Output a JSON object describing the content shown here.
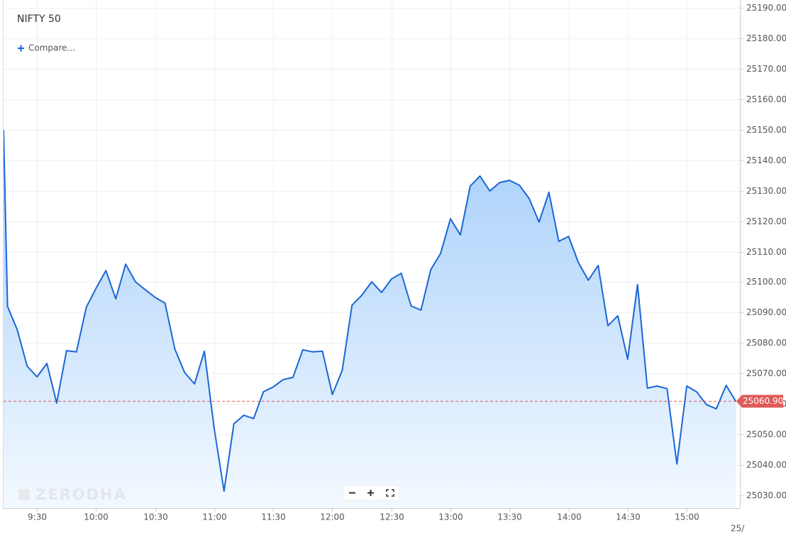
{
  "chart_data": {
    "type": "area",
    "title": "NIFTY 50",
    "compare_label": "Compare...",
    "watermark": "ZERODHA",
    "date_label": "25/",
    "color": "#1a66d6",
    "grid": true,
    "x": [
      "9:13",
      "9:15",
      "9:20",
      "9:25",
      "9:30",
      "9:35",
      "9:40",
      "9:45",
      "9:50",
      "9:55",
      "10:00",
      "10:05",
      "10:10",
      "10:15",
      "10:20",
      "10:25",
      "10:30",
      "10:35",
      "10:40",
      "10:45",
      "10:50",
      "10:55",
      "11:00",
      "11:05",
      "11:10",
      "11:15",
      "11:20",
      "11:25",
      "11:30",
      "11:35",
      "11:40",
      "11:45",
      "11:50",
      "11:55",
      "12:00",
      "12:05",
      "12:10",
      "12:15",
      "12:20",
      "12:25",
      "12:30",
      "12:35",
      "12:40",
      "12:45",
      "12:50",
      "12:55",
      "13:00",
      "13:05",
      "13:10",
      "13:15",
      "13:20",
      "13:25",
      "13:30",
      "13:35",
      "13:40",
      "13:45",
      "13:50",
      "13:55",
      "14:00",
      "14:05",
      "14:10",
      "14:15",
      "14:20",
      "14:25",
      "14:30",
      "14:35",
      "14:40",
      "14:45",
      "14:50",
      "14:55",
      "15:00",
      "15:05",
      "15:10",
      "15:15",
      "15:20",
      "15:25"
    ],
    "values": [
      25150,
      25092,
      25084.3,
      25072.4,
      25068.9,
      25073.3,
      25060.3,
      25077.5,
      25077.1,
      25091.7,
      25098,
      25103.8,
      25094.5,
      25105.9,
      25100.1,
      25097.5,
      25095,
      25093.1,
      25078,
      25070.3,
      25066.6,
      25077.3,
      25051.9,
      25031.4,
      25053.5,
      25056.3,
      25055.2,
      25064,
      25065.6,
      25068,
      25068.7,
      25077.8,
      25077.1,
      25077.3,
      25063.1,
      25071,
      25092.4,
      25095.7,
      25100.1,
      25096.6,
      25101,
      25102.9,
      25092.2,
      25090.8,
      25104.1,
      25109.4,
      25120.8,
      25115.5,
      25131.5,
      25134.8,
      25129.9,
      25132.7,
      25133.4,
      25131.8,
      25127.4,
      25119.7,
      25129.5,
      25113.4,
      25115,
      25106.4,
      25100.6,
      25105.5,
      25085.7,
      25088.9,
      25074.7,
      25099.2,
      25065.2,
      25065.9,
      25065,
      25040.3,
      25065.9,
      25064,
      25059.8,
      25058.4,
      25066.1,
      25060.8
    ],
    "xlim": [
      "9:13",
      "15:27"
    ],
    "xticks": [
      "9:30",
      "10:00",
      "10:30",
      "11:00",
      "11:30",
      "12:00",
      "12:30",
      "13:00",
      "13:30",
      "14:00",
      "14:30",
      "15:00"
    ],
    "ylim": [
      25025.8,
      25192.6
    ],
    "yticks": [
      {
        "value": 25030,
        "label": "25030.00"
      },
      {
        "value": 25040,
        "label": "25040.00"
      },
      {
        "value": 25050,
        "label": "25050.00"
      },
      {
        "value": 25060,
        "label": "25060.00"
      },
      {
        "value": 25070,
        "label": "25070.00"
      },
      {
        "value": 25080,
        "label": "25080.00"
      },
      {
        "value": 25090,
        "label": "25090.00"
      },
      {
        "value": 25100,
        "label": "25100.00"
      },
      {
        "value": 25110,
        "label": "25110.00"
      },
      {
        "value": 25120,
        "label": "25120.00"
      },
      {
        "value": 25130,
        "label": "25130.00"
      },
      {
        "value": 25140,
        "label": "25140.00"
      },
      {
        "value": 25150,
        "label": "25150.00"
      },
      {
        "value": 25160,
        "label": "25160.00"
      },
      {
        "value": 25170,
        "label": "25170.00"
      },
      {
        "value": 25180,
        "label": "25180.00"
      },
      {
        "value": 25190,
        "label": "25190.00"
      }
    ],
    "last_price": {
      "value": 25060.9,
      "label": "25060.90"
    },
    "last_price_color": "#e05a5a"
  }
}
